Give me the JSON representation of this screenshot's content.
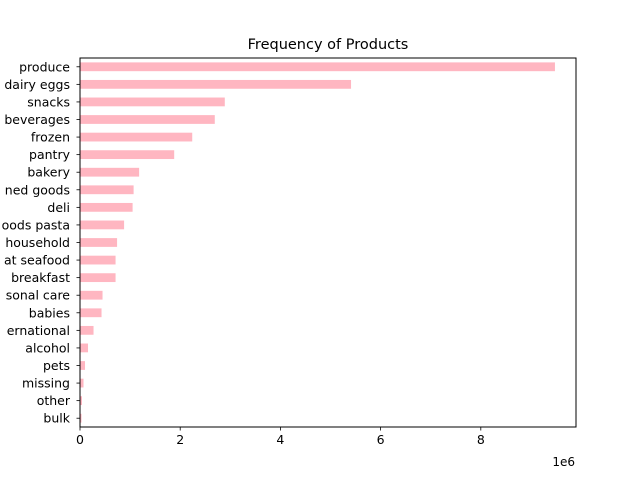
{
  "chart_data": {
    "type": "bar",
    "orientation": "horizontal",
    "title": "Frequency of Products",
    "xlabel": "",
    "ylabel": "",
    "x_offset_label": "1e6",
    "xlim": [
      0,
      9.9
    ],
    "x_ticks": [
      0,
      2,
      4,
      6,
      8
    ],
    "x_tick_labels": [
      "0",
      "2",
      "4",
      "6",
      "8"
    ],
    "grid": false,
    "legend": "none",
    "bar_color": "#FFB6C1",
    "categories": [
      "produce",
      "dairy eggs",
      "snacks",
      "beverages",
      "frozen",
      "pantry",
      "bakery",
      "canned goods",
      "deli",
      "dry goods pasta",
      "household",
      "meat seafood",
      "breakfast",
      "personal care",
      "babies",
      "international",
      "alcohol",
      "pets",
      "missing",
      "other",
      "bulk"
    ],
    "category_tick_labels": [
      "produce",
      "dairy eggs",
      "snacks",
      "beverages",
      "frozen",
      "pantry",
      "bakery",
      "ned goods",
      "deli",
      "oods pasta",
      "household",
      "at seafood",
      "breakfast",
      "sonal care",
      "babies",
      "ernational",
      "alcohol",
      "pets",
      "missing",
      "other",
      "bulk"
    ],
    "values": [
      9.48,
      5.41,
      2.89,
      2.69,
      2.24,
      1.88,
      1.18,
      1.07,
      1.05,
      0.88,
      0.74,
      0.71,
      0.71,
      0.45,
      0.43,
      0.27,
      0.16,
      0.1,
      0.07,
      0.04,
      0.03
    ]
  }
}
